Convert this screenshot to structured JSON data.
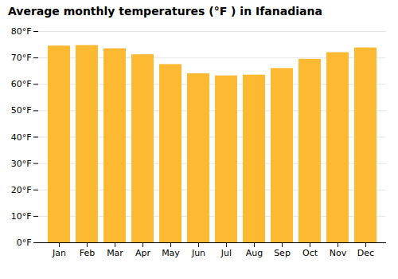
{
  "chart_data": {
    "type": "bar",
    "title": "Average monthly temperatures (°F ) in Ifanadiana",
    "categories": [
      "Jan",
      "Feb",
      "Mar",
      "Apr",
      "May",
      "Jun",
      "Jul",
      "Aug",
      "Sep",
      "Oct",
      "Nov",
      "Dec"
    ],
    "values": [
      74.5,
      74.7,
      73.5,
      71.2,
      67.5,
      64.0,
      63.2,
      63.5,
      66.0,
      69.5,
      72.0,
      73.8
    ],
    "color": "#FDB931",
    "ylim": [
      0,
      80
    ],
    "yticks": [
      {
        "value": 0,
        "label": "0°F"
      },
      {
        "value": 10,
        "label": "10°F"
      },
      {
        "value": 20,
        "label": "20°F"
      },
      {
        "value": 30,
        "label": "30°F"
      },
      {
        "value": 40,
        "label": "40°F"
      },
      {
        "value": 50,
        "label": "50°F"
      },
      {
        "value": 60,
        "label": "60°F"
      },
      {
        "value": 70,
        "label": "70°F"
      },
      {
        "value": 80,
        "label": "80°F"
      }
    ],
    "grid": true
  }
}
